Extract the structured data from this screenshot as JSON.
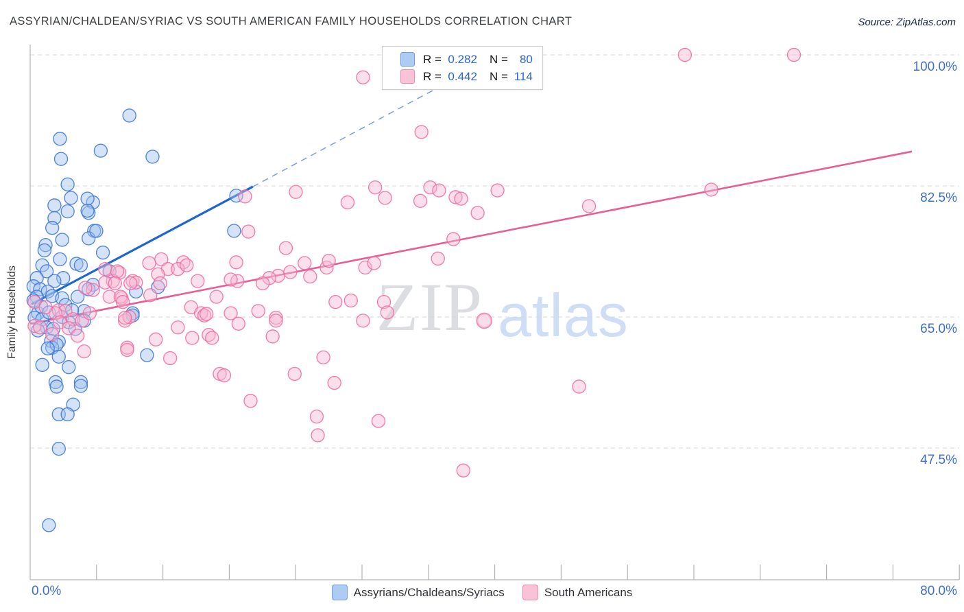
{
  "header": {
    "title": "ASSYRIAN/CHALDEAN/SYRIAC VS SOUTH AMERICAN FAMILY HOUSEHOLDS CORRELATION CHART",
    "source": "Source: ZipAtlas.com"
  },
  "watermark": {
    "zip": "ZIP",
    "atlas": "atlas"
  },
  "axes": {
    "y_title": "Family Households",
    "y_ticks": [
      {
        "label": "100.0%",
        "value": 100
      },
      {
        "label": "82.5%",
        "value": 82.5
      },
      {
        "label": "65.0%",
        "value": 65
      },
      {
        "label": "47.5%",
        "value": 47.5
      }
    ],
    "x_ticks": [
      {
        "label": "0.0%",
        "value": 0,
        "align": "left"
      },
      {
        "label": "80.0%",
        "value": 80,
        "align": "right"
      }
    ]
  },
  "legend_box": {
    "rows": [
      {
        "series": "blue",
        "r_label": "R =",
        "r_value": "0.282",
        "n_label": "N =",
        "n_value": "80"
      },
      {
        "series": "pink",
        "r_label": "R =",
        "r_value": "0.442",
        "n_label": "N =",
        "n_value": "114"
      }
    ]
  },
  "bottom_legend": [
    {
      "key": "blue",
      "label": "Assyrians/Chaldeans/Syriacs"
    },
    {
      "key": "pink",
      "label": "South Americans"
    }
  ],
  "colors": {
    "blue_fill": "#9fc2f0",
    "blue_stroke": "#3b76d3",
    "pink_fill": "#f6b9d0",
    "pink_stroke": "#ee6ba3",
    "blue_trend": "#1b66d2",
    "blue_trend_dashed": "#7b9ce0",
    "pink_trend": "#e75e96",
    "grid": "#d7d7d7",
    "axis": "#b2b2b2",
    "tick_label": "#3e70cc"
  },
  "chart_data": {
    "type": "scatter",
    "title": "Assyrian/Chaldean/Syriac vs South American Family Households",
    "xlabel": "Assyrians/Chaldeans/Syriacs (%)",
    "ylabel": "Family Households",
    "x_range": [
      0,
      84
    ],
    "y_range": [
      30,
      101.5
    ],
    "grid": "horizontal-dashed",
    "legend_position": "bottom",
    "series": [
      {
        "name": "Assyrians/Chaldeans/Syriacs",
        "R": 0.282,
        "N": 80,
        "color_key": "blue",
        "points": [
          [
            9.0,
            91.9
          ],
          [
            2.7,
            88.8
          ],
          [
            2.8,
            86.1
          ],
          [
            6.4,
            87.2
          ],
          [
            11.1,
            86.4
          ],
          [
            3.4,
            82.7
          ],
          [
            3.7,
            80.9
          ],
          [
            2.2,
            79.9
          ],
          [
            3.4,
            79.1
          ],
          [
            5.7,
            80.3
          ],
          [
            5.3,
            78.9
          ],
          [
            2.2,
            78.2
          ],
          [
            2.0,
            76.9
          ],
          [
            5.2,
            80.8
          ],
          [
            5.2,
            79.2
          ],
          [
            5.8,
            76.5
          ],
          [
            5.3,
            75.5
          ],
          [
            6.0,
            76.5
          ],
          [
            2.9,
            75.3
          ],
          [
            1.4,
            74.6
          ],
          [
            1.3,
            73.9
          ],
          [
            2.7,
            72.7
          ],
          [
            1.1,
            71.9
          ],
          [
            4.2,
            72.1
          ],
          [
            4.6,
            71.9
          ],
          [
            1.5,
            71.1
          ],
          [
            3.0,
            70.2
          ],
          [
            2.2,
            69.8
          ],
          [
            0.6,
            70.2
          ],
          [
            0.3,
            69.1
          ],
          [
            0.9,
            68.7
          ],
          [
            1.6,
            68.4
          ],
          [
            2.0,
            67.8
          ],
          [
            0.6,
            67.7
          ],
          [
            0.3,
            67.2
          ],
          [
            5.7,
            69.3
          ],
          [
            5.3,
            68.7
          ],
          [
            4.3,
            67.7
          ],
          [
            2.9,
            67.5
          ],
          [
            0.7,
            65.5
          ],
          [
            0.4,
            64.9
          ],
          [
            1.1,
            64.7
          ],
          [
            1.5,
            63.6
          ],
          [
            2.1,
            63.4
          ],
          [
            0.7,
            63.2
          ],
          [
            4.9,
            65.8
          ],
          [
            9.3,
            65.5
          ],
          [
            1.9,
            61.8
          ],
          [
            2.6,
            61.7
          ],
          [
            2.0,
            60.9
          ],
          [
            2.4,
            61.3
          ],
          [
            1.6,
            60.8
          ],
          [
            2.3,
            56.3
          ],
          [
            4.6,
            56.3
          ],
          [
            1.1,
            58.6
          ],
          [
            18.5,
            76.5
          ],
          [
            6.6,
            73.6
          ],
          [
            7.2,
            71.1
          ],
          [
            11.6,
            69.0
          ],
          [
            9.6,
            68.4
          ],
          [
            9.3,
            65.2
          ],
          [
            10.6,
            59.9
          ],
          [
            2.4,
            55.7
          ],
          [
            4.6,
            55.8
          ],
          [
            3.9,
            53.3
          ],
          [
            2.6,
            52.0
          ],
          [
            3.4,
            52.0
          ],
          [
            2.6,
            47.4
          ],
          [
            1.7,
            37.2
          ],
          [
            1.0,
            66.4
          ],
          [
            1.7,
            65.6
          ],
          [
            2.9,
            65.0
          ],
          [
            3.5,
            64.3
          ],
          [
            4.1,
            63.4
          ],
          [
            3.2,
            66.6
          ],
          [
            3.8,
            65.9
          ],
          [
            4.9,
            64.5
          ],
          [
            2.6,
            59.7
          ],
          [
            3.5,
            58.3
          ],
          [
            18.7,
            81.2
          ]
        ],
        "trend_solid": [
          [
            0.1,
            66.7
          ],
          [
            20.2,
            82.4
          ]
        ],
        "trend_dashed": [
          [
            20.2,
            82.4
          ],
          [
            42.7,
            100.1
          ]
        ]
      },
      {
        "name": "South Americans",
        "R": 0.442,
        "N": 114,
        "color_key": "pink",
        "points": [
          [
            59.4,
            100.0
          ],
          [
            69.3,
            100.0
          ],
          [
            30.2,
            97.0
          ],
          [
            35.5,
            89.7
          ],
          [
            61.8,
            82.0
          ],
          [
            50.7,
            79.8
          ],
          [
            19.5,
            81.1
          ],
          [
            24.1,
            81.7
          ],
          [
            31.3,
            82.3
          ],
          [
            32.2,
            80.9
          ],
          [
            35.4,
            80.5
          ],
          [
            36.3,
            82.3
          ],
          [
            38.6,
            81.0
          ],
          [
            28.8,
            80.3
          ],
          [
            37.1,
            81.9
          ],
          [
            39.1,
            80.8
          ],
          [
            42.4,
            81.9
          ],
          [
            40.6,
            78.9
          ],
          [
            38.4,
            75.4
          ],
          [
            37.0,
            72.8
          ],
          [
            41.2,
            64.5
          ],
          [
            49.8,
            55.7
          ],
          [
            20.0,
            53.8
          ],
          [
            27.6,
            56.2
          ],
          [
            26.0,
            51.7
          ],
          [
            26.1,
            49.2
          ],
          [
            31.6,
            51.1
          ],
          [
            39.3,
            44.5
          ],
          [
            19.8,
            76.4
          ],
          [
            23.2,
            74.2
          ],
          [
            10.8,
            72.2
          ],
          [
            11.9,
            72.7
          ],
          [
            13.9,
            72.3
          ],
          [
            12.5,
            71.4
          ],
          [
            13.4,
            71.4
          ],
          [
            14.2,
            71.9
          ],
          [
            8.1,
            70.9
          ],
          [
            9.3,
            69.8
          ],
          [
            9.6,
            69.6
          ],
          [
            7.5,
            69.8
          ],
          [
            11.6,
            70.7
          ],
          [
            11.8,
            69.5
          ],
          [
            15.2,
            69.8
          ],
          [
            18.7,
            72.3
          ],
          [
            18.8,
            69.8
          ],
          [
            18.2,
            70.0
          ],
          [
            7.2,
            67.7
          ],
          [
            8.3,
            67.5
          ],
          [
            10.9,
            67.9
          ],
          [
            16.9,
            67.7
          ],
          [
            14.6,
            66.3
          ],
          [
            15.5,
            65.5
          ],
          [
            15.8,
            65.2
          ],
          [
            16.0,
            65.4
          ],
          [
            18.2,
            65.5
          ],
          [
            18.9,
            64.1
          ],
          [
            20.7,
            65.8
          ],
          [
            22.3,
            64.9
          ],
          [
            22.5,
            70.5
          ],
          [
            21.7,
            70.2
          ],
          [
            21.1,
            69.5
          ],
          [
            8.6,
            64.5
          ],
          [
            13.4,
            63.6
          ],
          [
            14.7,
            62.2
          ],
          [
            16.2,
            62.6
          ],
          [
            16.5,
            62.2
          ],
          [
            8.8,
            60.9
          ],
          [
            11.4,
            62.0
          ],
          [
            12.7,
            59.5
          ],
          [
            17.2,
            57.4
          ],
          [
            17.6,
            57.2
          ],
          [
            22.0,
            62.4
          ],
          [
            22.3,
            64.5
          ],
          [
            6.8,
            71.4
          ],
          [
            7.9,
            71.1
          ],
          [
            6.8,
            69.6
          ],
          [
            7.7,
            69.5
          ],
          [
            9.1,
            69.5
          ],
          [
            8.2,
            67.7
          ],
          [
            5.7,
            68.6
          ],
          [
            5.0,
            68.9
          ],
          [
            2.6,
            65.9
          ],
          [
            3.2,
            65.8
          ],
          [
            2.3,
            65.5
          ],
          [
            0.4,
            63.8
          ],
          [
            0.9,
            63.6
          ],
          [
            3.9,
            64.7
          ],
          [
            4.7,
            64.5
          ],
          [
            5.4,
            65.5
          ],
          [
            8.4,
            67.0
          ],
          [
            9.0,
            65.0
          ],
          [
            8.6,
            64.9
          ],
          [
            4.9,
            60.4
          ],
          [
            8.8,
            60.6
          ],
          [
            2.0,
            62.7
          ],
          [
            0.4,
            67.0
          ],
          [
            1.4,
            66.3
          ],
          [
            2.7,
            64.3
          ],
          [
            3.5,
            63.5
          ],
          [
            4.3,
            62.5
          ],
          [
            23.6,
            71.0
          ],
          [
            24.9,
            72.2
          ],
          [
            25.4,
            70.4
          ],
          [
            26.9,
            71.6
          ],
          [
            27.1,
            72.5
          ],
          [
            27.7,
            67.0
          ],
          [
            29.1,
            67.2
          ],
          [
            30.4,
            71.6
          ],
          [
            31.2,
            72.2
          ],
          [
            32.1,
            67.0
          ],
          [
            30.2,
            64.5
          ],
          [
            32.4,
            65.6
          ],
          [
            26.6,
            59.6
          ],
          [
            24.0,
            57.4
          ]
        ],
        "trend_solid": [
          [
            0,
            64.1
          ],
          [
            80,
            87.1
          ]
        ]
      }
    ]
  }
}
